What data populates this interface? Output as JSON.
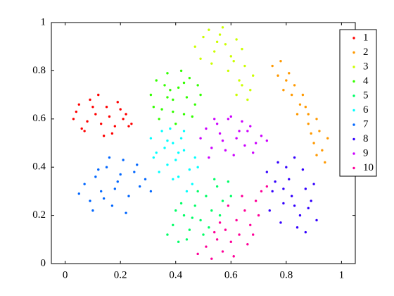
{
  "chart_data": {
    "type": "scatter",
    "xlim": [
      -0.05,
      1.05
    ],
    "ylim": [
      0,
      1
    ],
    "xticks": [
      0,
      0.2,
      0.4,
      0.6,
      0.8,
      1
    ],
    "yticks": [
      0,
      0.2,
      0.4,
      0.6,
      0.8,
      1
    ],
    "grid": false,
    "legend": "upper right",
    "series": [
      {
        "name": "1",
        "color": "#ff0000",
        "x": [
          0.03,
          0.05,
          0.07,
          0.09,
          0.11,
          0.13,
          0.15,
          0.17,
          0.19,
          0.21,
          0.23,
          0.04,
          0.08,
          0.12,
          0.16,
          0.2,
          0.24,
          0.06,
          0.1,
          0.14,
          0.18,
          0.22
        ],
        "y": [
          0.6,
          0.66,
          0.55,
          0.68,
          0.62,
          0.58,
          0.65,
          0.54,
          0.67,
          0.6,
          0.57,
          0.63,
          0.59,
          0.7,
          0.61,
          0.64,
          0.58,
          0.56,
          0.65,
          0.53,
          0.57,
          0.62
        ]
      },
      {
        "name": "2",
        "color": "#ff9900",
        "x": [
          0.75,
          0.77,
          0.78,
          0.8,
          0.79,
          0.82,
          0.83,
          0.85,
          0.84,
          0.87,
          0.88,
          0.86,
          0.89,
          0.91,
          0.9,
          0.92,
          0.93,
          0.94,
          0.95,
          0.91,
          0.88,
          0.81
        ],
        "y": [
          0.82,
          0.78,
          0.84,
          0.76,
          0.72,
          0.7,
          0.74,
          0.66,
          0.62,
          0.65,
          0.58,
          0.7,
          0.54,
          0.6,
          0.5,
          0.55,
          0.47,
          0.42,
          0.52,
          0.45,
          0.62,
          0.79
        ]
      },
      {
        "name": "3",
        "color": "#ccff00",
        "x": [
          0.47,
          0.5,
          0.52,
          0.54,
          0.56,
          0.58,
          0.6,
          0.62,
          0.64,
          0.49,
          0.53,
          0.57,
          0.61,
          0.55,
          0.59,
          0.63,
          0.65,
          0.67,
          0.66,
          0.68,
          0.62,
          0.64
        ],
        "y": [
          0.9,
          0.94,
          0.97,
          0.88,
          0.95,
          0.91,
          0.86,
          0.93,
          0.89,
          0.85,
          0.83,
          0.98,
          0.84,
          0.92,
          0.8,
          0.76,
          0.82,
          0.72,
          0.68,
          0.78,
          0.7,
          0.74
        ]
      },
      {
        "name": "4",
        "color": "#33ff00",
        "x": [
          0.31,
          0.33,
          0.35,
          0.37,
          0.39,
          0.41,
          0.43,
          0.45,
          0.47,
          0.49,
          0.34,
          0.38,
          0.42,
          0.46,
          0.36,
          0.4,
          0.44,
          0.32,
          0.48,
          0.39,
          0.43,
          0.37
        ],
        "y": [
          0.7,
          0.76,
          0.64,
          0.79,
          0.68,
          0.73,
          0.62,
          0.77,
          0.66,
          0.7,
          0.6,
          0.72,
          0.8,
          0.61,
          0.74,
          0.58,
          0.69,
          0.65,
          0.74,
          0.63,
          0.75,
          0.69
        ]
      },
      {
        "name": "5",
        "color": "#00ff66",
        "x": [
          0.37,
          0.39,
          0.41,
          0.43,
          0.45,
          0.47,
          0.49,
          0.51,
          0.53,
          0.55,
          0.57,
          0.59,
          0.4,
          0.44,
          0.48,
          0.52,
          0.56,
          0.6,
          0.42,
          0.46,
          0.5,
          0.54
        ],
        "y": [
          0.12,
          0.16,
          0.09,
          0.2,
          0.14,
          0.24,
          0.18,
          0.28,
          0.22,
          0.32,
          0.26,
          0.34,
          0.22,
          0.1,
          0.3,
          0.15,
          0.2,
          0.28,
          0.25,
          0.19,
          0.12,
          0.35
        ]
      },
      {
        "name": "6",
        "color": "#00ffff",
        "x": [
          0.31,
          0.33,
          0.35,
          0.37,
          0.39,
          0.41,
          0.43,
          0.45,
          0.47,
          0.34,
          0.38,
          0.42,
          0.46,
          0.36,
          0.4,
          0.44,
          0.32,
          0.48,
          0.39,
          0.43,
          0.37,
          0.41
        ],
        "y": [
          0.52,
          0.46,
          0.55,
          0.41,
          0.5,
          0.36,
          0.47,
          0.39,
          0.44,
          0.38,
          0.56,
          0.52,
          0.33,
          0.48,
          0.43,
          0.3,
          0.44,
          0.4,
          0.35,
          0.55,
          0.51,
          0.46
        ]
      },
      {
        "name": "7",
        "color": "#0066ff",
        "x": [
          0.05,
          0.07,
          0.09,
          0.11,
          0.13,
          0.15,
          0.17,
          0.19,
          0.21,
          0.23,
          0.25,
          0.27,
          0.29,
          0.31,
          0.1,
          0.14,
          0.18,
          0.22,
          0.26,
          0.12,
          0.2,
          0.16
        ],
        "y": [
          0.29,
          0.33,
          0.26,
          0.36,
          0.3,
          0.4,
          0.24,
          0.34,
          0.43,
          0.28,
          0.38,
          0.32,
          0.35,
          0.3,
          0.22,
          0.27,
          0.31,
          0.21,
          0.41,
          0.39,
          0.37,
          0.44
        ]
      },
      {
        "name": "8",
        "color": "#3300ff",
        "x": [
          0.73,
          0.75,
          0.77,
          0.79,
          0.81,
          0.83,
          0.85,
          0.87,
          0.89,
          0.91,
          0.74,
          0.78,
          0.82,
          0.86,
          0.9,
          0.76,
          0.8,
          0.84,
          0.88,
          0.79,
          0.83,
          0.87
        ],
        "y": [
          0.38,
          0.3,
          0.42,
          0.25,
          0.35,
          0.44,
          0.2,
          0.31,
          0.26,
          0.18,
          0.22,
          0.17,
          0.28,
          0.39,
          0.33,
          0.34,
          0.4,
          0.15,
          0.23,
          0.31,
          0.24,
          0.13
        ]
      },
      {
        "name": "9",
        "color": "#cc00ff",
        "x": [
          0.49,
          0.51,
          0.53,
          0.55,
          0.57,
          0.59,
          0.61,
          0.63,
          0.65,
          0.67,
          0.69,
          0.71,
          0.73,
          0.52,
          0.56,
          0.6,
          0.64,
          0.68,
          0.58,
          0.62,
          0.66,
          0.54
        ],
        "y": [
          0.52,
          0.56,
          0.48,
          0.58,
          0.51,
          0.6,
          0.45,
          0.55,
          0.49,
          0.57,
          0.5,
          0.53,
          0.51,
          0.44,
          0.54,
          0.61,
          0.59,
          0.46,
          0.47,
          0.52,
          0.55,
          0.6
        ]
      },
      {
        "name": "10",
        "color": "#ff0099",
        "x": [
          0.48,
          0.51,
          0.53,
          0.55,
          0.57,
          0.58,
          0.6,
          0.62,
          0.63,
          0.65,
          0.67,
          0.69,
          0.71,
          0.73,
          0.56,
          0.61,
          0.66,
          0.7,
          0.54,
          0.59,
          0.64,
          0.68
        ],
        "y": [
          0.04,
          0.07,
          0.02,
          0.1,
          0.05,
          0.14,
          0.09,
          0.18,
          0.12,
          0.22,
          0.16,
          0.26,
          0.3,
          0.32,
          0.17,
          0.03,
          0.08,
          0.2,
          0.13,
          0.24,
          0.28,
          0.12
        ]
      }
    ]
  }
}
